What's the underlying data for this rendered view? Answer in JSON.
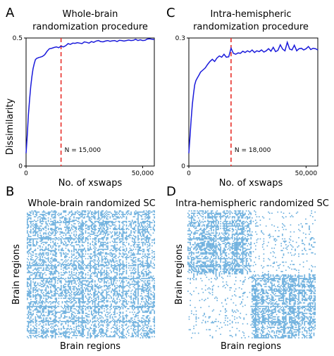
{
  "panel_letters": [
    "A",
    "B",
    "C",
    "D"
  ],
  "chart_data": [
    {
      "panel": "A",
      "type": "line",
      "title": "Whole-brain\nrandomization procedure",
      "xlabel": "No. of xswaps",
      "ylabel": "Dissimilarity",
      "xlim": [
        0,
        55000
      ],
      "ylim": [
        0,
        0.5
      ],
      "yticks": [
        0,
        0.5
      ],
      "xtick_labels": [
        "0",
        "50,000"
      ],
      "ytick_labels": [
        "0",
        "0.5"
      ],
      "line_color": "#1a1adb",
      "threshold": {
        "x": 15000,
        "label": "N = 15,000",
        "color": "#e8302a"
      },
      "series": [
        {
          "x": [
            0,
            500,
            1000,
            1500,
            2000,
            2500,
            3000,
            3500,
            4000,
            4500,
            5000,
            5500,
            6000,
            7000,
            8000,
            9000,
            10000,
            11000,
            12000,
            13000,
            14000,
            15000,
            16000,
            17000,
            18000,
            19000,
            20000,
            21000,
            22000,
            23000,
            24000,
            25000,
            26000,
            27000,
            28000,
            29000,
            30000,
            31000,
            32000,
            33000,
            34000,
            35000,
            36000,
            37000,
            38000,
            39000,
            40000,
            41000,
            42000,
            43000,
            44000,
            45000,
            46000,
            47000,
            48000,
            49000,
            50000,
            51000,
            52000,
            53000,
            54000,
            55000
          ],
          "y": [
            0.05,
            0.12,
            0.2,
            0.26,
            0.31,
            0.35,
            0.38,
            0.4,
            0.415,
            0.42,
            0.422,
            0.424,
            0.425,
            0.428,
            0.435,
            0.448,
            0.458,
            0.46,
            0.463,
            0.465,
            0.462,
            0.468,
            0.465,
            0.47,
            0.478,
            0.475,
            0.48,
            0.479,
            0.482,
            0.48,
            0.478,
            0.485,
            0.483,
            0.48,
            0.486,
            0.483,
            0.488,
            0.49,
            0.486,
            0.485,
            0.488,
            0.49,
            0.487,
            0.489,
            0.49,
            0.486,
            0.491,
            0.49,
            0.488,
            0.49,
            0.492,
            0.49,
            0.491,
            0.495,
            0.49,
            0.493,
            0.49,
            0.491,
            0.496,
            0.497,
            0.495,
            0.494
          ]
        }
      ]
    },
    {
      "panel": "C",
      "type": "line",
      "title": "Intra-hemispheric\nrandomization procedure",
      "xlabel": "No. of xswaps",
      "ylabel": "",
      "xlim": [
        0,
        55000
      ],
      "ylim": [
        0,
        0.3
      ],
      "yticks": [
        0,
        0.3
      ],
      "xtick_labels": [
        "0",
        "50,000"
      ],
      "ytick_labels": [
        "0",
        "0.3"
      ],
      "line_color": "#1a1adb",
      "threshold": {
        "x": 18000,
        "label": "N = 18,000",
        "color": "#e8302a"
      },
      "series": [
        {
          "x": [
            0,
            500,
            1000,
            1500,
            2000,
            2500,
            3000,
            3500,
            4000,
            4500,
            5000,
            6000,
            7000,
            8000,
            9000,
            10000,
            11000,
            12000,
            13000,
            14000,
            15000,
            16000,
            17000,
            18000,
            19000,
            20000,
            21000,
            22000,
            23000,
            24000,
            25000,
            26000,
            27000,
            28000,
            29000,
            30000,
            31000,
            32000,
            33000,
            34000,
            35000,
            36000,
            37000,
            38000,
            39000,
            40000,
            41000,
            42000,
            43000,
            44000,
            45000,
            46000,
            47000,
            48000,
            49000,
            50000,
            51000,
            52000,
            53000,
            54000,
            55000
          ],
          "y": [
            0.03,
            0.07,
            0.11,
            0.145,
            0.17,
            0.19,
            0.2,
            0.205,
            0.21,
            0.215,
            0.22,
            0.225,
            0.23,
            0.238,
            0.245,
            0.25,
            0.245,
            0.253,
            0.258,
            0.255,
            0.262,
            0.255,
            0.256,
            0.276,
            0.264,
            0.262,
            0.265,
            0.264,
            0.269,
            0.266,
            0.27,
            0.267,
            0.272,
            0.266,
            0.27,
            0.268,
            0.272,
            0.267,
            0.27,
            0.275,
            0.269,
            0.278,
            0.268,
            0.271,
            0.284,
            0.274,
            0.27,
            0.29,
            0.274,
            0.272,
            0.283,
            0.27,
            0.275,
            0.276,
            0.272,
            0.275,
            0.28,
            0.273,
            0.276,
            0.275,
            0.272
          ]
        }
      ]
    },
    {
      "panel": "B",
      "type": "heatmap",
      "title": "Whole-brain randomized SC",
      "xlabel": "Brain regions",
      "ylabel": "Brain regions",
      "color": "#6aaedd",
      "pattern": "whole-brain"
    },
    {
      "panel": "D",
      "type": "heatmap",
      "title": "Intra-hemispheric randomized SC",
      "xlabel": "Brain regions",
      "ylabel": "Brain regions",
      "color": "#6aaedd",
      "pattern": "intra-hemispheric"
    }
  ]
}
